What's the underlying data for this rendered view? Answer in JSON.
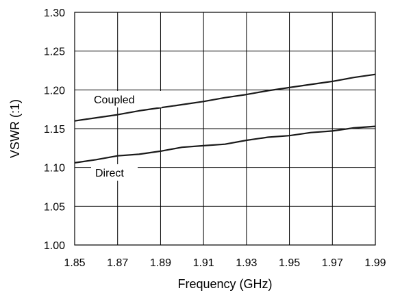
{
  "chart_data": {
    "type": "line",
    "xlabel": "Frequency (GHz)",
    "ylabel": "VSWR (:1)",
    "xlim": [
      1.85,
      1.99
    ],
    "ylim": [
      1.0,
      1.3
    ],
    "x_ticks": [
      "1.85",
      "1.87",
      "1.89",
      "1.91",
      "1.93",
      "1.95",
      "1.97",
      "1.99"
    ],
    "y_ticks": [
      "1.00",
      "1.05",
      "1.10",
      "1.15",
      "1.20",
      "1.25",
      "1.30"
    ],
    "grid": true,
    "legend": "none",
    "series": [
      {
        "name": "Coupled",
        "color": "#1a1a1a",
        "x": [
          1.85,
          1.86,
          1.87,
          1.88,
          1.89,
          1.9,
          1.91,
          1.92,
          1.93,
          1.94,
          1.95,
          1.96,
          1.97,
          1.98,
          1.99
        ],
        "values": [
          1.16,
          1.164,
          1.168,
          1.173,
          1.177,
          1.181,
          1.185,
          1.19,
          1.194,
          1.199,
          1.203,
          1.207,
          1.211,
          1.216,
          1.22
        ]
      },
      {
        "name": "Direct",
        "color": "#1a1a1a",
        "x": [
          1.85,
          1.86,
          1.87,
          1.88,
          1.89,
          1.9,
          1.91,
          1.92,
          1.93,
          1.94,
          1.95,
          1.96,
          1.97,
          1.98,
          1.99
        ],
        "values": [
          1.106,
          1.11,
          1.115,
          1.117,
          1.121,
          1.126,
          1.128,
          1.13,
          1.135,
          1.139,
          1.141,
          1.145,
          1.147,
          1.151,
          1.153
        ]
      }
    ]
  }
}
